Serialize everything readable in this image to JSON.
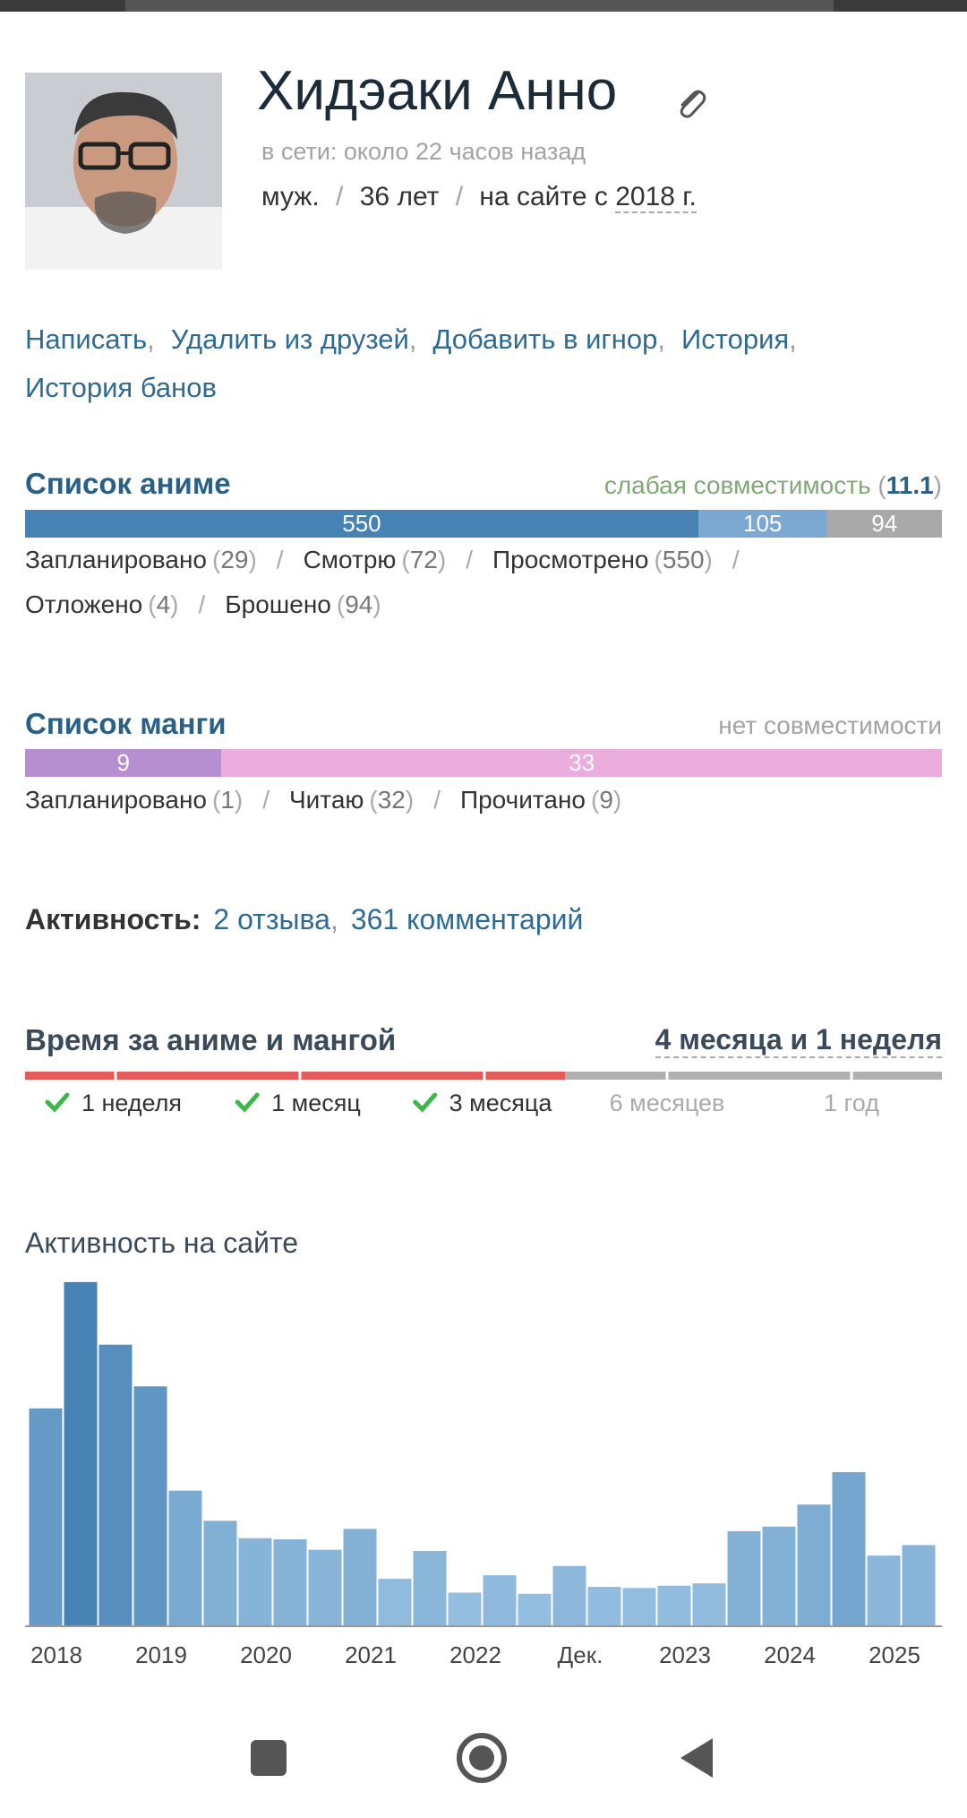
{
  "profile": {
    "name": "Хидэаки Анно",
    "online": "в сети: около 22 часов назад",
    "sex": "муж.",
    "age": "36 лет",
    "since_prefix": "на сайте с",
    "since_year": "2018 г.",
    "separator": "/"
  },
  "actions": {
    "items": [
      "Написать",
      "Удалить из друзей",
      "Добавить в игнор",
      "История",
      "История банов"
    ],
    "separator": ","
  },
  "anime_list": {
    "title": "Список аниме",
    "compat_label": "слабая совместимость",
    "compat_value": 11.1,
    "brackets": [
      "(",
      ")"
    ],
    "bar": [
      {
        "value": 550,
        "color": "#4682b4"
      },
      {
        "value": 105,
        "color": "#7ba7d1"
      },
      {
        "value": 94,
        "color": "#a9a9a9"
      }
    ],
    "stats": [
      {
        "label": "Запланировано",
        "count": 29
      },
      {
        "label": "Смотрю",
        "count": 72
      },
      {
        "label": "Просмотрено",
        "count": 550
      },
      {
        "label": "Отложено",
        "count": 4
      },
      {
        "label": "Брошено",
        "count": 94
      }
    ],
    "separator": "/"
  },
  "manga_list": {
    "title": "Список манги",
    "compat_label": "нет совместимости",
    "brackets": [
      "(",
      ")"
    ],
    "bar": [
      {
        "value": 9,
        "color": "#b58fcf"
      },
      {
        "value": 33,
        "color": "#ebaedc"
      }
    ],
    "stats": [
      {
        "label": "Запланировано",
        "count": 1
      },
      {
        "label": "Читаю",
        "count": 32
      },
      {
        "label": "Прочитано",
        "count": 9
      }
    ],
    "separator": "/"
  },
  "activity": {
    "label": "Активность:",
    "links": [
      "2 отзыва",
      "361 комментарий"
    ],
    "separator": ","
  },
  "time_spent": {
    "title": "Время за аниме и мангой",
    "total": "4 месяца и 1 неделя",
    "milestones": [
      {
        "label": "1 неделя",
        "reached": true
      },
      {
        "label": "1 месяц",
        "reached": true
      },
      {
        "label": "3 месяца",
        "reached": true
      },
      {
        "label": "6 месяцев",
        "reached": false
      },
      {
        "label": "1 год",
        "reached": false
      }
    ]
  },
  "site_activity": {
    "title": "Активность на сайте",
    "values": [
      188,
      297,
      243,
      207,
      117,
      91,
      76,
      75,
      66,
      84,
      41,
      65,
      29,
      44,
      28,
      52,
      34,
      33,
      35,
      37,
      82,
      86,
      105,
      133,
      61,
      70
    ],
    "x_labels": [
      "2018",
      "2019",
      "2020",
      "2021",
      "2022",
      "Дек.",
      "2023",
      "2024",
      "2025"
    ]
  }
}
